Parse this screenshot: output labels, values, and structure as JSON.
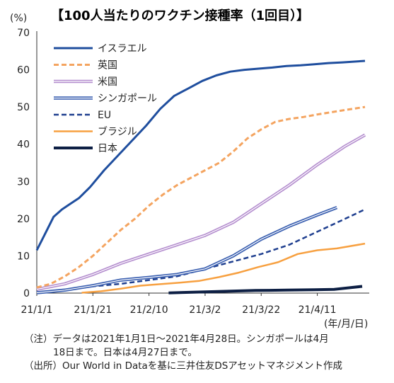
{
  "chart_data": {
    "type": "line",
    "title": "【100人当たりのワクチン接種率（1回目）】",
    "ylabel": "(%)",
    "xlabel": "(年/月/日)",
    "ylim": [
      0,
      70
    ],
    "yticks": [
      0,
      10,
      20,
      30,
      40,
      50,
      60,
      70
    ],
    "x_start": "2021-01-01",
    "x_end": "2021-04-28",
    "xticks": [
      {
        "date": "2021-01-01",
        "label": "21/1/1"
      },
      {
        "date": "2021-01-21",
        "label": "21/1/21"
      },
      {
        "date": "2021-02-10",
        "label": "21/2/10"
      },
      {
        "date": "2021-03-02",
        "label": "21/3/2"
      },
      {
        "date": "2021-03-22",
        "label": "21/3/22"
      },
      {
        "date": "2021-04-11",
        "label": "21/4/11"
      }
    ],
    "grid": false,
    "legend_position": "top-left",
    "series": [
      {
        "name": "イスラエル",
        "color": "#1f4e9e",
        "style": "solid",
        "width": 3,
        "x": [
          "2021-01-01",
          "2021-01-04",
          "2021-01-07",
          "2021-01-10",
          "2021-01-13",
          "2021-01-16",
          "2021-01-20",
          "2021-01-25",
          "2021-01-30",
          "2021-02-04",
          "2021-02-09",
          "2021-02-14",
          "2021-02-19",
          "2021-02-24",
          "2021-03-01",
          "2021-03-06",
          "2021-03-11",
          "2021-03-16",
          "2021-03-21",
          "2021-03-26",
          "2021-03-31",
          "2021-04-05",
          "2021-04-10",
          "2021-04-15",
          "2021-04-20",
          "2021-04-28"
        ],
        "y": [
          11.5,
          16,
          20.5,
          22.5,
          24,
          25.5,
          28.5,
          33,
          37,
          41,
          45,
          49.5,
          53,
          55,
          57,
          58.5,
          59.5,
          60,
          60.3,
          60.6,
          61,
          61.2,
          61.5,
          61.8,
          62,
          62.4
        ]
      },
      {
        "name": "英国",
        "color": "#f4a460",
        "style": "dashed",
        "width": 3,
        "x": [
          "2021-01-01",
          "2021-01-06",
          "2021-01-11",
          "2021-01-16",
          "2021-01-21",
          "2021-01-26",
          "2021-01-31",
          "2021-02-05",
          "2021-02-10",
          "2021-02-15",
          "2021-02-20",
          "2021-02-25",
          "2021-03-02",
          "2021-03-07",
          "2021-03-12",
          "2021-03-17",
          "2021-03-22",
          "2021-03-27",
          "2021-04-01",
          "2021-04-06",
          "2021-04-11",
          "2021-04-16",
          "2021-04-21",
          "2021-04-28"
        ],
        "y": [
          1.5,
          2.5,
          4.5,
          7,
          10,
          13.5,
          17,
          20,
          23.5,
          26.5,
          29,
          31,
          33,
          35,
          38,
          41.5,
          44,
          46,
          46.8,
          47.3,
          48,
          48.6,
          49.2,
          50
        ]
      },
      {
        "name": "米国",
        "color": "#b58fcf",
        "style": "double",
        "width": 3,
        "x": [
          "2021-01-01",
          "2021-01-11",
          "2021-01-21",
          "2021-01-31",
          "2021-02-10",
          "2021-02-20",
          "2021-03-02",
          "2021-03-12",
          "2021-03-22",
          "2021-04-01",
          "2021-04-11",
          "2021-04-21",
          "2021-04-28"
        ],
        "y": [
          1,
          2.5,
          5,
          8,
          10.5,
          13,
          15.5,
          19,
          24,
          29,
          34.5,
          39.5,
          42.5
        ]
      },
      {
        "name": "シンガポール",
        "color": "#3a5fb0",
        "style": "double",
        "width": 3,
        "x": [
          "2021-01-01",
          "2021-01-11",
          "2021-01-21",
          "2021-01-31",
          "2021-02-10",
          "2021-02-20",
          "2021-03-02",
          "2021-03-12",
          "2021-03-22",
          "2021-04-01",
          "2021-04-11",
          "2021-04-18"
        ],
        "y": [
          0.1,
          0.8,
          2,
          3.5,
          4.2,
          5,
          6.5,
          10,
          14.5,
          18,
          21,
          23
        ]
      },
      {
        "name": "EU",
        "color": "#1f3f8f",
        "style": "dashed",
        "width": 2.5,
        "x": [
          "2021-01-01",
          "2021-01-11",
          "2021-01-21",
          "2021-01-31",
          "2021-02-10",
          "2021-02-20",
          "2021-03-02",
          "2021-03-12",
          "2021-03-22",
          "2021-04-01",
          "2021-04-11",
          "2021-04-21",
          "2021-04-28"
        ],
        "y": [
          0.1,
          0.8,
          1.8,
          2.5,
          3.5,
          4.5,
          6.5,
          8.5,
          10.5,
          13,
          16.5,
          20,
          22.5
        ]
      },
      {
        "name": "ブラジル",
        "color": "#f7a040",
        "style": "solid",
        "width": 2.5,
        "x": [
          "2021-01-17",
          "2021-01-24",
          "2021-01-31",
          "2021-02-07",
          "2021-02-14",
          "2021-02-21",
          "2021-02-28",
          "2021-03-07",
          "2021-03-14",
          "2021-03-21",
          "2021-03-28",
          "2021-04-04",
          "2021-04-11",
          "2021-04-18",
          "2021-04-28"
        ],
        "y": [
          0.1,
          0.5,
          1.2,
          2,
          2.4,
          2.8,
          3.3,
          4.3,
          5.5,
          7,
          8.3,
          10.5,
          11.5,
          12,
          13.3
        ]
      },
      {
        "name": "日本",
        "color": "#0d1f44",
        "style": "solid",
        "width": 4,
        "x": [
          "2021-02-17",
          "2021-03-01",
          "2021-03-10",
          "2021-03-20",
          "2021-03-31",
          "2021-04-10",
          "2021-04-17",
          "2021-04-22",
          "2021-04-27"
        ],
        "y": [
          0.05,
          0.3,
          0.5,
          0.7,
          0.8,
          0.9,
          1.0,
          1.4,
          1.8
        ]
      }
    ]
  },
  "notes": {
    "line1": "（注）データは2021年1月1日～2021年4月28日。シンガポールは4月",
    "line2": "18日まで。日本は4月27日まで。",
    "line3": "（出所）Our World in Dataを基に三井住友DSアセットマネジメント作成"
  }
}
